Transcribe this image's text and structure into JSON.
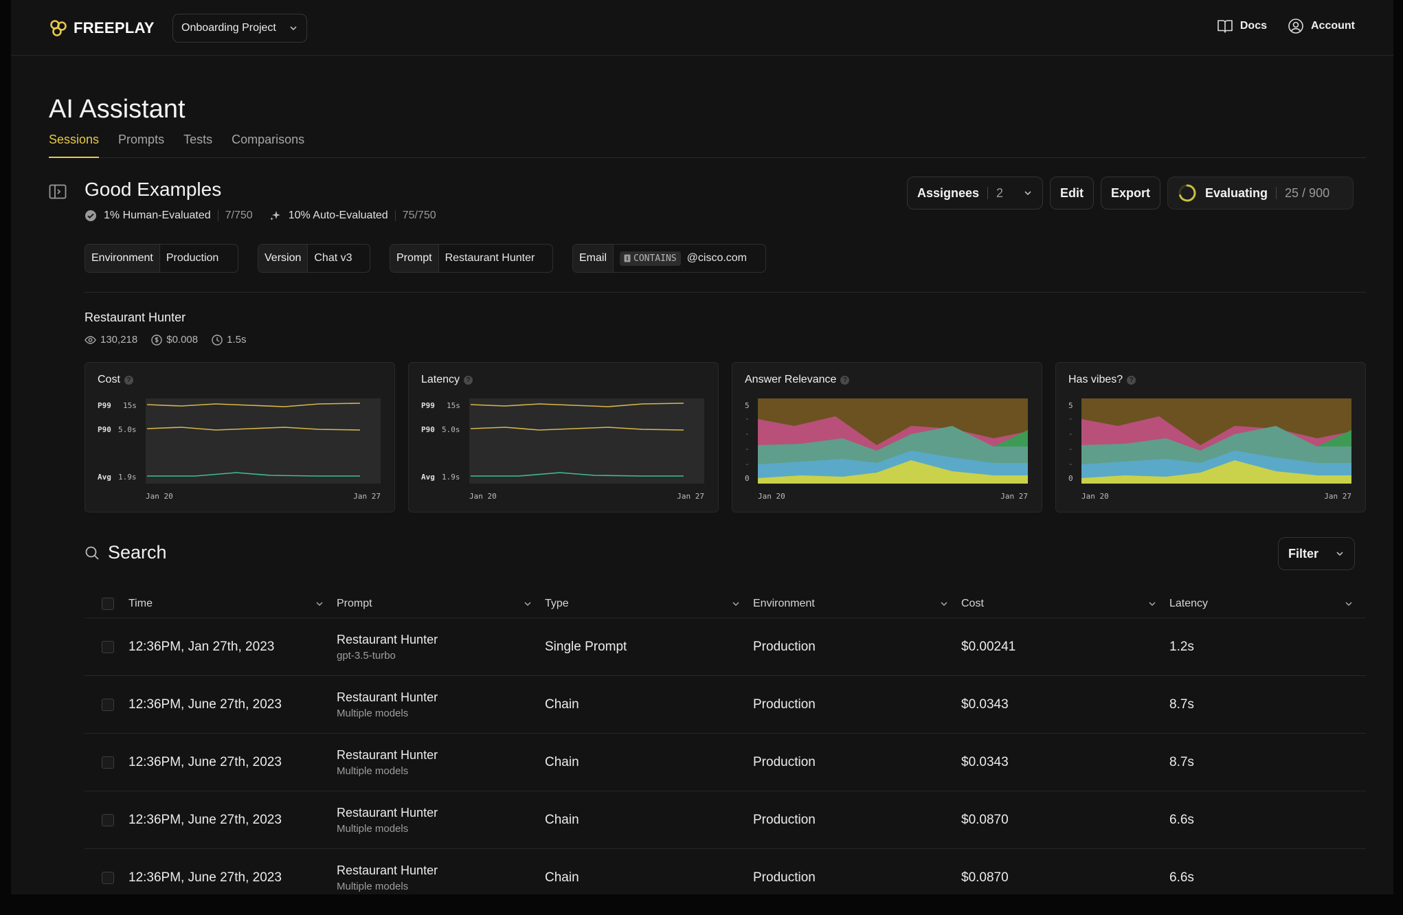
{
  "app": {
    "brand": "FREEPLAY",
    "project": "Onboarding Project"
  },
  "header": {
    "docs_label": "Docs",
    "account_label": "Account"
  },
  "page": {
    "title": "AI Assistant",
    "tabs": [
      {
        "label": "Sessions",
        "active": true
      },
      {
        "label": "Prompts"
      },
      {
        "label": "Tests"
      },
      {
        "label": "Comparisons"
      }
    ]
  },
  "section": {
    "title": "Good Examples",
    "human_eval_label": "1% Human-Evaluated",
    "human_eval_count": "7/750",
    "auto_eval_label": "10% Auto-Evaluated",
    "auto_eval_count": "75/750"
  },
  "actions": {
    "assignees_label": "Assignees",
    "assignees_count": "2",
    "edit_label": "Edit",
    "export_label": "Export",
    "evaluating_label": "Evaluating",
    "evaluating_progress": "25 / 900",
    "evaluating_fraction": 0.0278
  },
  "filters": [
    {
      "key": "Environment",
      "value": "Production"
    },
    {
      "key": "Version",
      "value": "Chat v3"
    },
    {
      "key": "Prompt",
      "value": "Restaurant Hunter"
    },
    {
      "key": "Email",
      "operator": "CONTAINS",
      "value": "@cisco.com"
    }
  ],
  "prompt_summary": {
    "name": "Restaurant Hunter",
    "views": "130,218",
    "cost": "$0.008",
    "latency": "1.5s"
  },
  "metric_cards": [
    {
      "title": "Cost",
      "type": "line",
      "rows": [
        {
          "label": "P99",
          "value": "15s"
        },
        {
          "label": "P90",
          "value": "5.0s"
        },
        {
          "label": "Avg",
          "value": "1.9s"
        }
      ],
      "x_start": "Jan 20",
      "x_end": "Jan 27"
    },
    {
      "title": "Latency",
      "type": "line",
      "rows": [
        {
          "label": "P99",
          "value": "15s"
        },
        {
          "label": "P90",
          "value": "5.0s"
        },
        {
          "label": "Avg",
          "value": "1.9s"
        }
      ],
      "x_start": "Jan 20",
      "x_end": "Jan 27"
    },
    {
      "title": "Answer Relevance",
      "type": "area",
      "y_top": "5",
      "y_bottom": "0",
      "x_start": "Jan 20",
      "x_end": "Jan 27"
    },
    {
      "title": "Has vibes?",
      "type": "area",
      "y_top": "5",
      "y_bottom": "0",
      "x_start": "Jan 20",
      "x_end": "Jan 27"
    }
  ],
  "search": {
    "label": "Search",
    "filter_label": "Filter"
  },
  "table": {
    "columns": [
      "Time",
      "Prompt",
      "Type",
      "Environment",
      "Cost",
      "Latency"
    ],
    "rows": [
      {
        "time": "12:36PM, Jan 27th, 2023",
        "prompt": "Restaurant Hunter",
        "model": "gpt-3.5-turbo",
        "type": "Single Prompt",
        "environment": "Production",
        "cost": "$0.00241",
        "latency": "1.2s"
      },
      {
        "time": "12:36PM, June 27th, 2023",
        "prompt": "Restaurant Hunter",
        "model": "Multiple models",
        "type": "Chain",
        "environment": "Production",
        "cost": "$0.0343",
        "latency": "8.7s"
      },
      {
        "time": "12:36PM, June 27th, 2023",
        "prompt": "Restaurant Hunter",
        "model": "Multiple models",
        "type": "Chain",
        "environment": "Production",
        "cost": "$0.0343",
        "latency": "8.7s"
      },
      {
        "time": "12:36PM, June 27th, 2023",
        "prompt": "Restaurant Hunter",
        "model": "Multiple models",
        "type": "Chain",
        "environment": "Production",
        "cost": "$0.0870",
        "latency": "6.6s"
      },
      {
        "time": "12:36PM, June 27th, 2023",
        "prompt": "Restaurant Hunter",
        "model": "Multiple models",
        "type": "Chain",
        "environment": "Production",
        "cost": "$0.0870",
        "latency": "6.6s"
      }
    ]
  },
  "colors": {
    "accent": "#e7c94a",
    "p99_line": "#d9b84a",
    "avg_line": "#3fbf8f",
    "area_top": "#6b5220",
    "area_pink": "#b8507a",
    "area_teal": "#5f9e8a",
    "area_blue": "#5aa9c9",
    "area_yellow": "#c9d24a",
    "area_green": "#3d9b55"
  }
}
